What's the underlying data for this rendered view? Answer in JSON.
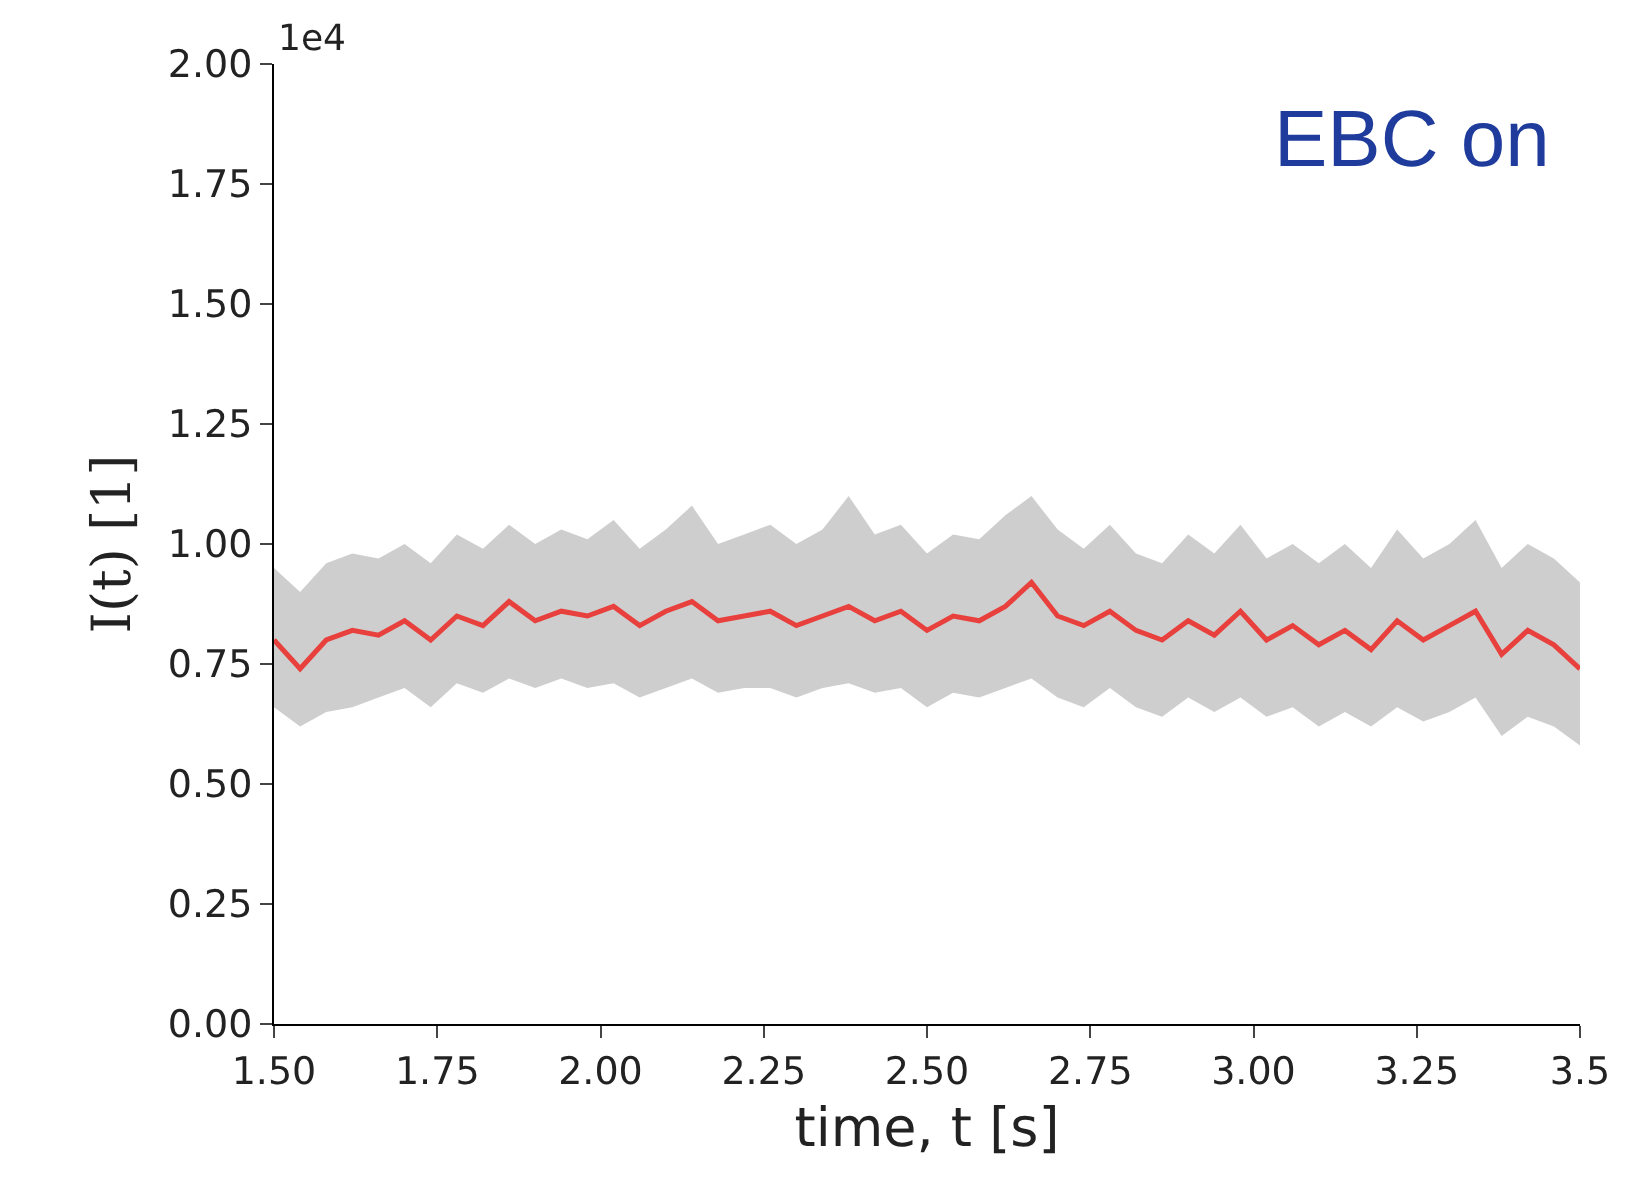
{
  "chart_data": {
    "type": "line",
    "xlabel": "time, t [s]",
    "ylabel": "I(t) [1]",
    "annotations": [
      "1e4",
      "EBC on"
    ],
    "x": [
      1.5,
      1.54,
      1.58,
      1.62,
      1.66,
      1.7,
      1.74,
      1.78,
      1.82,
      1.86,
      1.9,
      1.94,
      1.98,
      2.02,
      2.06,
      2.1,
      2.14,
      2.18,
      2.22,
      2.26,
      2.3,
      2.34,
      2.38,
      2.42,
      2.46,
      2.5,
      2.54,
      2.58,
      2.62,
      2.66,
      2.7,
      2.74,
      2.78,
      2.82,
      2.86,
      2.9,
      2.94,
      2.98,
      3.02,
      3.06,
      3.1,
      3.14,
      3.18,
      3.22,
      3.26,
      3.3,
      3.34,
      3.38,
      3.42,
      3.46,
      3.5
    ],
    "series": [
      {
        "color": "#e8403c",
        "values": [
          0.8,
          0.74,
          0.8,
          0.82,
          0.81,
          0.84,
          0.8,
          0.85,
          0.83,
          0.88,
          0.84,
          0.86,
          0.85,
          0.87,
          0.83,
          0.86,
          0.88,
          0.84,
          0.85,
          0.86,
          0.83,
          0.85,
          0.87,
          0.84,
          0.86,
          0.82,
          0.85,
          0.84,
          0.87,
          0.92,
          0.85,
          0.83,
          0.86,
          0.82,
          0.8,
          0.84,
          0.81,
          0.86,
          0.8,
          0.83,
          0.79,
          0.82,
          0.78,
          0.84,
          0.8,
          0.83,
          0.86,
          0.77,
          0.82,
          0.79,
          0.74
        ],
        "lower": [
          0.66,
          0.62,
          0.65,
          0.66,
          0.68,
          0.7,
          0.66,
          0.71,
          0.69,
          0.72,
          0.7,
          0.72,
          0.7,
          0.71,
          0.68,
          0.7,
          0.72,
          0.69,
          0.7,
          0.7,
          0.68,
          0.7,
          0.71,
          0.69,
          0.7,
          0.66,
          0.69,
          0.68,
          0.7,
          0.72,
          0.68,
          0.66,
          0.7,
          0.66,
          0.64,
          0.68,
          0.65,
          0.68,
          0.64,
          0.66,
          0.62,
          0.65,
          0.62,
          0.66,
          0.63,
          0.65,
          0.68,
          0.6,
          0.64,
          0.62,
          0.58
        ],
        "upper": [
          0.95,
          0.9,
          0.96,
          0.98,
          0.97,
          1.0,
          0.96,
          1.02,
          0.99,
          1.04,
          1.0,
          1.03,
          1.01,
          1.05,
          0.99,
          1.03,
          1.08,
          1.0,
          1.02,
          1.04,
          1.0,
          1.03,
          1.1,
          1.02,
          1.04,
          0.98,
          1.02,
          1.01,
          1.06,
          1.1,
          1.03,
          0.99,
          1.04,
          0.98,
          0.96,
          1.02,
          0.98,
          1.04,
          0.97,
          1.0,
          0.96,
          1.0,
          0.95,
          1.03,
          0.97,
          1.0,
          1.05,
          0.95,
          1.0,
          0.97,
          0.92
        ]
      }
    ],
    "xlim": [
      1.5,
      3.5
    ],
    "xticks": [
      {
        "value": 1.5,
        "label": "1.50"
      },
      1.75,
      {
        "value": 2,
        "label": "2.00"
      },
      2.25,
      {
        "value": 2.5,
        "label": "2.50"
      },
      2.75,
      {
        "value": 3,
        "label": "3.00"
      },
      3.25,
      {
        "value": 3.5,
        "label": "3.5"
      }
    ],
    "ylim": [
      0,
      2
    ],
    "yticks": [
      {
        "value": 0,
        "label": "0.00"
      },
      0.25,
      {
        "value": 0.5,
        "label": "0.50"
      },
      0.75,
      {
        "value": 1,
        "label": "1.00"
      },
      1.25,
      {
        "value": 1.5,
        "label": "1.50"
      },
      1.75,
      {
        "value": 2,
        "label": "2.00"
      }
    ],
    "line_style": "solid"
  }
}
